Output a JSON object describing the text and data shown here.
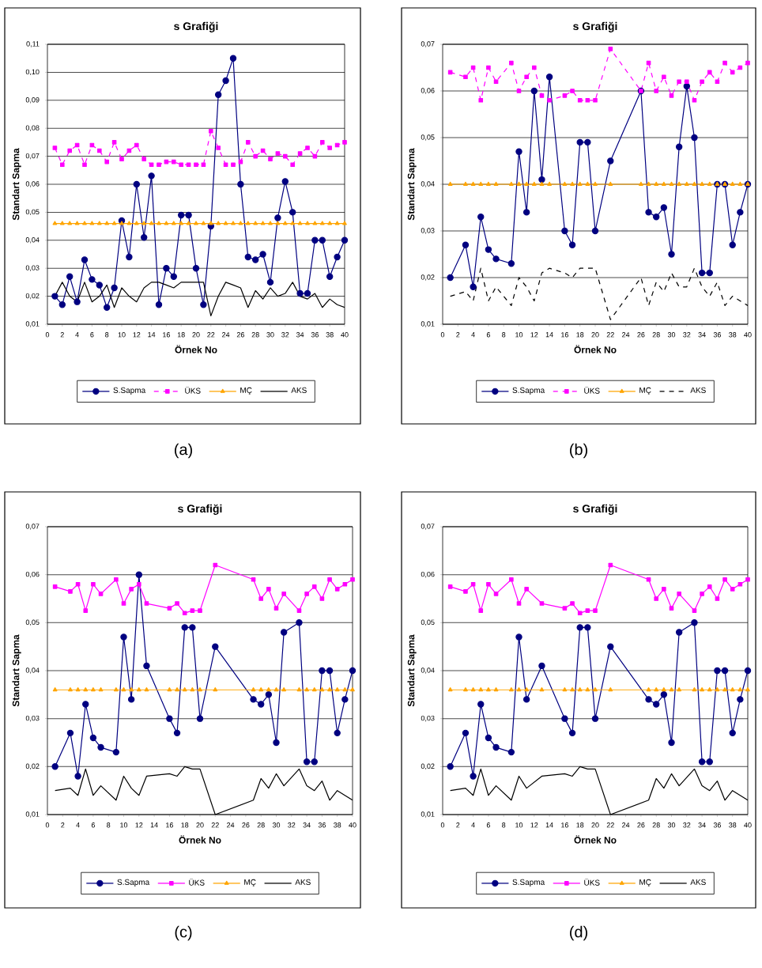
{
  "chart_data": [
    {
      "type": "line",
      "title": "s Grafiği",
      "xlabel": "Örnek No",
      "ylabel": "Standart Sapma",
      "annotations": [
        "(a)"
      ],
      "grid": "y",
      "legend": "bottom",
      "xlim": [
        0,
        40
      ],
      "xticks": [
        0,
        2,
        4,
        6,
        8,
        10,
        12,
        14,
        16,
        18,
        20,
        22,
        24,
        26,
        28,
        30,
        32,
        34,
        36,
        38,
        40
      ],
      "ylim": [
        0.01,
        0.11
      ],
      "yticks": [
        {
          "value": 0.01,
          "label": "0,01"
        },
        {
          "value": 0.02,
          "label": "0,02"
        },
        {
          "value": 0.03,
          "label": "0,03"
        },
        {
          "value": 0.04,
          "label": "0,04"
        },
        {
          "value": 0.05,
          "label": "0,05"
        },
        {
          "value": 0.06,
          "label": "0,06"
        },
        {
          "value": 0.07,
          "label": "0,07"
        },
        {
          "value": 0.08,
          "label": "0,08"
        },
        {
          "value": 0.09,
          "label": "0,09"
        },
        {
          "value": 0.1,
          "label": "0,10"
        },
        {
          "value": 0.11,
          "label": "0,11"
        }
      ],
      "x": [
        1,
        2,
        3,
        4,
        5,
        6,
        7,
        8,
        9,
        10,
        11,
        12,
        13,
        14,
        15,
        16,
        17,
        18,
        19,
        20,
        21,
        22,
        23,
        24,
        25,
        26,
        27,
        28,
        29,
        30,
        31,
        32,
        33,
        34,
        35,
        36,
        37,
        38,
        39,
        40
      ],
      "series": [
        {
          "name": "S.Sapma",
          "color": "#000080",
          "marker": "circle",
          "line_style": "solid",
          "values": [
            0.02,
            0.017,
            0.027,
            0.018,
            0.033,
            0.026,
            0.024,
            0.016,
            0.023,
            0.047,
            0.034,
            0.06,
            0.041,
            0.063,
            0.017,
            0.03,
            0.027,
            0.049,
            0.049,
            0.03,
            0.017,
            0.045,
            0.092,
            0.097,
            0.105,
            0.06,
            0.034,
            0.033,
            0.035,
            0.025,
            0.048,
            0.061,
            0.05,
            0.021,
            0.021,
            0.04,
            0.04,
            0.027,
            0.034,
            0.04
          ]
        },
        {
          "name": "ÜKS",
          "color": "#ff00ff",
          "marker": "square",
          "line_style": "dashed",
          "values": [
            0.073,
            0.067,
            0.072,
            0.074,
            0.067,
            0.074,
            0.072,
            0.068,
            0.075,
            0.069,
            0.072,
            0.074,
            0.069,
            0.067,
            0.067,
            0.068,
            0.068,
            0.067,
            0.067,
            0.067,
            0.067,
            0.079,
            0.073,
            0.067,
            0.067,
            0.068,
            0.075,
            0.07,
            0.072,
            0.069,
            0.071,
            0.07,
            0.067,
            0.071,
            0.073,
            0.07,
            0.075,
            0.073,
            0.074,
            0.075
          ]
        },
        {
          "name": "MÇ",
          "color": "#ffa500",
          "marker": "triangle",
          "line_style": "solid",
          "values": [
            0.046,
            0.046,
            0.046,
            0.046,
            0.046,
            0.046,
            0.046,
            0.046,
            0.046,
            0.046,
            0.046,
            0.046,
            0.046,
            0.046,
            0.046,
            0.046,
            0.046,
            0.046,
            0.046,
            0.046,
            0.046,
            0.046,
            0.046,
            0.046,
            0.046,
            0.046,
            0.046,
            0.046,
            0.046,
            0.046,
            0.046,
            0.046,
            0.046,
            0.046,
            0.046,
            0.046,
            0.046,
            0.046,
            0.046,
            0.046
          ]
        },
        {
          "name": "AKS",
          "color": "#000000",
          "marker": "none",
          "line_style": "solid",
          "values": [
            0.02,
            0.025,
            0.02,
            0.018,
            0.025,
            0.018,
            0.02,
            0.024,
            0.016,
            0.023,
            0.02,
            0.018,
            0.023,
            0.025,
            0.025,
            0.024,
            0.023,
            0.025,
            0.025,
            0.025,
            0.025,
            0.013,
            0.02,
            0.025,
            0.024,
            0.023,
            0.016,
            0.022,
            0.019,
            0.023,
            0.02,
            0.021,
            0.025,
            0.02,
            0.019,
            0.021,
            0.016,
            0.019,
            0.017,
            0.016
          ]
        }
      ]
    },
    {
      "type": "line",
      "title": "s Grafiği",
      "xlabel": "Örnek No",
      "ylabel": "Standart Sapma",
      "annotations": [
        "(b)"
      ],
      "grid": "y",
      "legend": "bottom",
      "xlim": [
        0,
        40
      ],
      "xticks": [
        0,
        2,
        4,
        6,
        8,
        10,
        12,
        14,
        16,
        18,
        20,
        22,
        24,
        26,
        28,
        30,
        32,
        34,
        36,
        38,
        40
      ],
      "ylim": [
        0.01,
        0.07
      ],
      "yticks": [
        {
          "value": 0.01,
          "label": "0,01"
        },
        {
          "value": 0.02,
          "label": "0,02"
        },
        {
          "value": 0.03,
          "label": "0,03"
        },
        {
          "value": 0.04,
          "label": "0,04"
        },
        {
          "value": 0.05,
          "label": "0,05"
        },
        {
          "value": 0.06,
          "label": "0,06"
        },
        {
          "value": 0.07,
          "label": "0,07"
        }
      ],
      "x": [
        1,
        3,
        4,
        5,
        6,
        7,
        9,
        10,
        11,
        12,
        13,
        14,
        16,
        17,
        18,
        19,
        20,
        22,
        26,
        27,
        28,
        29,
        30,
        31,
        32,
        33,
        34,
        35,
        36,
        37,
        38,
        39,
        40
      ],
      "series": [
        {
          "name": "S.Sapma",
          "color": "#000080",
          "marker": "circle",
          "line_style": "solid",
          "values": [
            0.02,
            0.027,
            0.018,
            0.033,
            0.026,
            0.024,
            0.023,
            0.047,
            0.034,
            0.06,
            0.041,
            0.063,
            0.03,
            0.027,
            0.049,
            0.049,
            0.03,
            0.045,
            0.06,
            0.034,
            0.033,
            0.035,
            0.025,
            0.048,
            0.061,
            0.05,
            0.021,
            0.021,
            0.04,
            0.04,
            0.027,
            0.034,
            0.04
          ]
        },
        {
          "name": "ÜKS",
          "color": "#ff00ff",
          "marker": "square",
          "line_style": "dashed",
          "values": [
            0.064,
            0.063,
            0.065,
            0.058,
            0.065,
            0.062,
            0.066,
            0.06,
            0.063,
            0.065,
            0.059,
            0.058,
            0.059,
            0.06,
            0.058,
            0.058,
            0.058,
            0.069,
            0.06,
            0.066,
            0.06,
            0.063,
            0.059,
            0.062,
            0.062,
            0.058,
            0.062,
            0.064,
            0.062,
            0.066,
            0.064,
            0.065,
            0.066
          ]
        },
        {
          "name": "MÇ",
          "color": "#ffa500",
          "marker": "triangle",
          "line_style": "solid",
          "values": [
            0.04,
            0.04,
            0.04,
            0.04,
            0.04,
            0.04,
            0.04,
            0.04,
            0.04,
            0.04,
            0.04,
            0.04,
            0.04,
            0.04,
            0.04,
            0.04,
            0.04,
            0.04,
            0.04,
            0.04,
            0.04,
            0.04,
            0.04,
            0.04,
            0.04,
            0.04,
            0.04,
            0.04,
            0.04,
            0.04,
            0.04,
            0.04,
            0.04
          ]
        },
        {
          "name": "AKS",
          "color": "#000000",
          "marker": "none",
          "line_style": "dashed",
          "values": [
            0.016,
            0.017,
            0.015,
            0.022,
            0.015,
            0.018,
            0.014,
            0.02,
            0.018,
            0.015,
            0.021,
            0.022,
            0.021,
            0.02,
            0.022,
            0.022,
            0.022,
            0.011,
            0.02,
            0.014,
            0.019,
            0.017,
            0.021,
            0.018,
            0.018,
            0.022,
            0.018,
            0.016,
            0.019,
            0.014,
            0.016,
            0.015,
            0.014
          ]
        }
      ]
    },
    {
      "type": "line",
      "title": "s Grafiği",
      "xlabel": "Örnek No",
      "ylabel": "Standart Sapma",
      "annotations": [
        "(c)"
      ],
      "grid": "y",
      "legend": "bottom",
      "xlim": [
        0,
        40
      ],
      "xticks": [
        0,
        2,
        4,
        6,
        8,
        10,
        12,
        14,
        16,
        18,
        20,
        22,
        24,
        26,
        28,
        30,
        32,
        34,
        36,
        38,
        40
      ],
      "ylim": [
        0.01,
        0.07
      ],
      "yticks": [
        {
          "value": 0.01,
          "label": "0,01"
        },
        {
          "value": 0.02,
          "label": "0,02"
        },
        {
          "value": 0.03,
          "label": "0,03"
        },
        {
          "value": 0.04,
          "label": "0,04"
        },
        {
          "value": 0.05,
          "label": "0,05"
        },
        {
          "value": 0.06,
          "label": "0,06"
        },
        {
          "value": 0.07,
          "label": "0,07"
        }
      ],
      "x": [
        1,
        3,
        4,
        5,
        6,
        7,
        9,
        10,
        11,
        12,
        13,
        16,
        17,
        18,
        19,
        20,
        22,
        27,
        28,
        29,
        30,
        31,
        33,
        34,
        35,
        36,
        37,
        38,
        39,
        40
      ],
      "series": [
        {
          "name": "S.Sapma",
          "color": "#000080",
          "marker": "circle",
          "line_style": "solid",
          "values": [
            0.02,
            0.027,
            0.018,
            0.033,
            0.026,
            0.024,
            0.023,
            0.047,
            0.034,
            0.06,
            0.041,
            0.03,
            0.027,
            0.049,
            0.049,
            0.03,
            0.045,
            0.034,
            0.033,
            0.035,
            0.025,
            0.048,
            0.05,
            0.021,
            0.021,
            0.04,
            0.04,
            0.027,
            0.034,
            0.04
          ]
        },
        {
          "name": "ÜKS",
          "color": "#ff00ff",
          "marker": "square",
          "line_style": "solid",
          "values": [
            0.0575,
            0.0565,
            0.058,
            0.0525,
            0.058,
            0.056,
            0.059,
            0.054,
            0.057,
            0.058,
            0.054,
            0.053,
            0.054,
            0.052,
            0.0525,
            0.0525,
            0.062,
            0.059,
            0.055,
            0.057,
            0.053,
            0.056,
            0.0525,
            0.056,
            0.0575,
            0.055,
            0.059,
            0.057,
            0.058,
            0.059
          ]
        },
        {
          "name": "MÇ",
          "color": "#ffa500",
          "marker": "triangle",
          "line_style": "solid",
          "values": [
            0.036,
            0.036,
            0.036,
            0.036,
            0.036,
            0.036,
            0.036,
            0.036,
            0.036,
            0.036,
            0.036,
            0.036,
            0.036,
            0.036,
            0.036,
            0.036,
            0.036,
            0.036,
            0.036,
            0.036,
            0.036,
            0.036,
            0.036,
            0.036,
            0.036,
            0.036,
            0.036,
            0.036,
            0.036,
            0.036
          ]
        },
        {
          "name": "AKS",
          "color": "#000000",
          "marker": "none",
          "line_style": "solid",
          "values": [
            0.015,
            0.0155,
            0.014,
            0.0195,
            0.014,
            0.016,
            0.013,
            0.018,
            0.0155,
            0.014,
            0.018,
            0.0185,
            0.018,
            0.02,
            0.0195,
            0.0195,
            0.01,
            0.013,
            0.0175,
            0.0155,
            0.0185,
            0.016,
            0.0195,
            0.016,
            0.015,
            0.017,
            0.013,
            0.015,
            0.014,
            0.013
          ]
        }
      ]
    },
    {
      "type": "line",
      "title": "s Grafiği",
      "xlabel": "Örnek No",
      "ylabel": "Standart Sapma",
      "annotations": [
        "(d)"
      ],
      "grid": "y",
      "legend": "bottom",
      "xlim": [
        0,
        40
      ],
      "xticks": [
        0,
        2,
        4,
        6,
        8,
        10,
        12,
        14,
        16,
        18,
        20,
        22,
        24,
        26,
        28,
        30,
        32,
        34,
        36,
        38,
        40
      ],
      "ylim": [
        0.01,
        0.07
      ],
      "yticks": [
        {
          "value": 0.01,
          "label": "0,01"
        },
        {
          "value": 0.02,
          "label": "0,02"
        },
        {
          "value": 0.03,
          "label": "0,03"
        },
        {
          "value": 0.04,
          "label": "0,04"
        },
        {
          "value": 0.05,
          "label": "0,05"
        },
        {
          "value": 0.06,
          "label": "0,06"
        },
        {
          "value": 0.07,
          "label": "0,07"
        }
      ],
      "x": [
        1,
        3,
        4,
        5,
        6,
        7,
        9,
        10,
        11,
        13,
        16,
        17,
        18,
        19,
        20,
        22,
        27,
        28,
        29,
        30,
        31,
        33,
        34,
        35,
        36,
        37,
        38,
        39,
        40
      ],
      "series": [
        {
          "name": "S.Sapma",
          "color": "#000080",
          "marker": "circle",
          "line_style": "solid",
          "values": [
            0.02,
            0.027,
            0.018,
            0.033,
            0.026,
            0.024,
            0.023,
            0.047,
            0.034,
            0.041,
            0.03,
            0.027,
            0.049,
            0.049,
            0.03,
            0.045,
            0.034,
            0.033,
            0.035,
            0.025,
            0.048,
            0.05,
            0.021,
            0.021,
            0.04,
            0.04,
            0.027,
            0.034,
            0.04
          ]
        },
        {
          "name": "ÜKS",
          "color": "#ff00ff",
          "marker": "square",
          "line_style": "solid",
          "values": [
            0.0575,
            0.0565,
            0.058,
            0.0525,
            0.058,
            0.056,
            0.059,
            0.054,
            0.057,
            0.054,
            0.053,
            0.054,
            0.052,
            0.0525,
            0.0525,
            0.062,
            0.059,
            0.055,
            0.057,
            0.053,
            0.056,
            0.0525,
            0.056,
            0.0575,
            0.055,
            0.059,
            0.057,
            0.058,
            0.059
          ]
        },
        {
          "name": "MÇ",
          "color": "#ffa500",
          "marker": "triangle",
          "line_style": "solid",
          "values": [
            0.036,
            0.036,
            0.036,
            0.036,
            0.036,
            0.036,
            0.036,
            0.036,
            0.036,
            0.036,
            0.036,
            0.036,
            0.036,
            0.036,
            0.036,
            0.036,
            0.036,
            0.036,
            0.036,
            0.036,
            0.036,
            0.036,
            0.036,
            0.036,
            0.036,
            0.036,
            0.036,
            0.036,
            0.036
          ]
        },
        {
          "name": "AKS",
          "color": "#000000",
          "marker": "none",
          "line_style": "solid",
          "values": [
            0.015,
            0.0155,
            0.014,
            0.0195,
            0.014,
            0.016,
            0.013,
            0.018,
            0.0155,
            0.018,
            0.0185,
            0.018,
            0.02,
            0.0195,
            0.0195,
            0.01,
            0.013,
            0.0175,
            0.0155,
            0.0185,
            0.016,
            0.0195,
            0.016,
            0.015,
            0.017,
            0.013,
            0.015,
            0.014,
            0.013
          ]
        }
      ]
    }
  ]
}
